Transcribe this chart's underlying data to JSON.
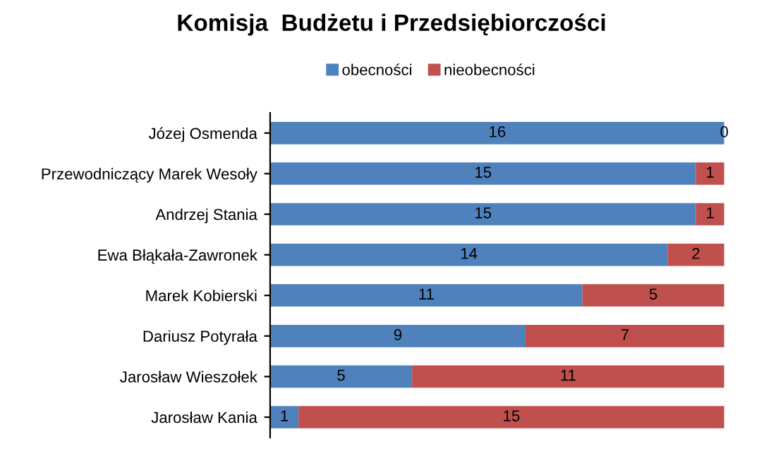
{
  "chart_data": {
    "type": "bar",
    "orientation": "horizontal",
    "stacked": true,
    "title": "Komisja  Budżetu i Przedsiębiorczości",
    "categories": [
      "Józej Osmenda",
      "Przewodniczący Marek Wesoły",
      "Andrzej Stania",
      "Ewa Błąkała-Zawronek",
      "Marek Kobierski",
      "Dariusz Potyrała",
      "Jarosław Wieszołek",
      "Jarosław Kania"
    ],
    "series": [
      {
        "name": "obecności",
        "color": "#4f81bd",
        "values": [
          16,
          15,
          15,
          14,
          11,
          9,
          5,
          1
        ]
      },
      {
        "name": "nieobecności",
        "color": "#c0504d",
        "values": [
          0,
          1,
          1,
          2,
          5,
          7,
          11,
          15
        ]
      }
    ],
    "data_labels": true,
    "legend": "top",
    "grid": false
  }
}
